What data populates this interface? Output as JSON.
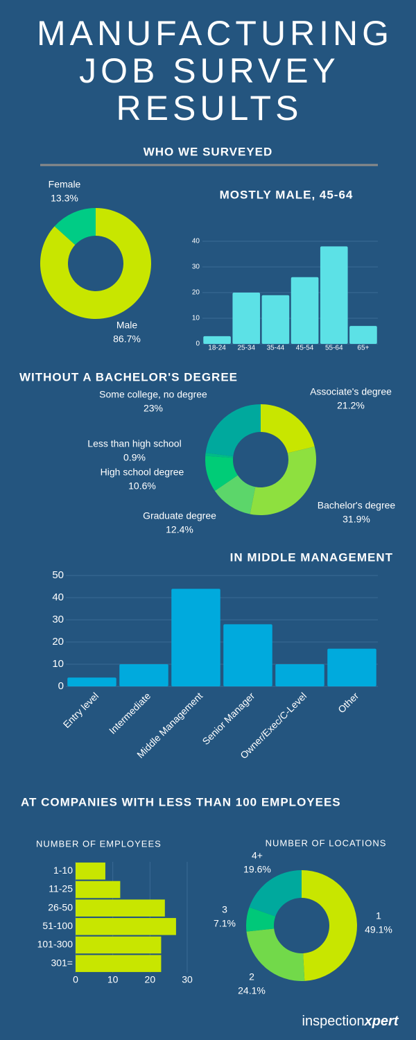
{
  "title": [
    "MANUFACTURING",
    "JOB SURVEY",
    "RESULTS"
  ],
  "section_who": "WHO WE SURVEYED",
  "section_companies": "AT COMPANIES WITH LESS THAN 100 EMPLOYEES",
  "logo": [
    "inspection",
    "xpert"
  ],
  "chart_data": [
    {
      "type": "pie",
      "categories": [
        "Male",
        "Female"
      ],
      "values": [
        86.7,
        13.3
      ],
      "value_labels": [
        "86.7%",
        "13.3%"
      ],
      "colors": [
        "#c8e600",
        "#00cc85"
      ]
    },
    {
      "type": "bar",
      "title": "MOSTLY MALE, 45-64",
      "categories": [
        "18-24",
        "25-34",
        "35-44",
        "45-54",
        "55-64",
        "65+"
      ],
      "values": [
        3,
        20,
        19,
        26,
        38,
        7
      ],
      "color": "#5ce1e6",
      "ylim": [
        0,
        40
      ],
      "yticks": [
        0,
        10,
        20,
        30,
        40
      ],
      "grid": true
    },
    {
      "type": "pie",
      "title": "WITHOUT A BACHELOR'S DEGREE",
      "categories": [
        "Associate's degree",
        "Bachelor's degree",
        "Graduate degree",
        "High school degree",
        "Less than high school",
        "Some college, no degree"
      ],
      "values": [
        21.2,
        31.9,
        12.4,
        10.6,
        0.9,
        23
      ],
      "value_labels": [
        "21.2%",
        "31.9%",
        "12.4%",
        "10.6%",
        "0.9%",
        "23%"
      ],
      "colors": [
        "#c8e600",
        "#8ee03f",
        "#5cd66a",
        "#00cc77",
        "#00bb88",
        "#00a99d"
      ]
    },
    {
      "type": "bar",
      "title": "IN MIDDLE MANAGEMENT",
      "categories": [
        "Entry level",
        "Intermediate",
        "Middle Management",
        "Senior Manager",
        "Owner/Exec/C-Level",
        "Other"
      ],
      "values": [
        4,
        10,
        44,
        28,
        10,
        17
      ],
      "color": "#00aadd",
      "ylim": [
        0,
        50
      ],
      "yticks": [
        0,
        10,
        20,
        30,
        40,
        50
      ],
      "grid": true
    },
    {
      "type": "hbar",
      "title": "NUMBER OF EMPLOYEES",
      "categories": [
        "1-10",
        "11-25",
        "26-50",
        "51-100",
        "101-300",
        "301="
      ],
      "values": [
        8,
        12,
        24,
        27,
        23,
        23
      ],
      "color": "#c8e600",
      "xlim": [
        0,
        30
      ],
      "xticks": [
        0,
        10,
        20,
        30
      ],
      "grid": true
    },
    {
      "type": "pie",
      "title": "NUMBER OF LOCATIONS",
      "categories": [
        "1",
        "2",
        "3",
        "4+"
      ],
      "values": [
        49.1,
        24.1,
        7.1,
        19.6
      ],
      "value_labels": [
        "49.1%",
        "24.1%",
        "7.1%",
        "19.6%"
      ],
      "colors": [
        "#c8e600",
        "#72d94a",
        "#00c879",
        "#00a99d"
      ]
    }
  ]
}
